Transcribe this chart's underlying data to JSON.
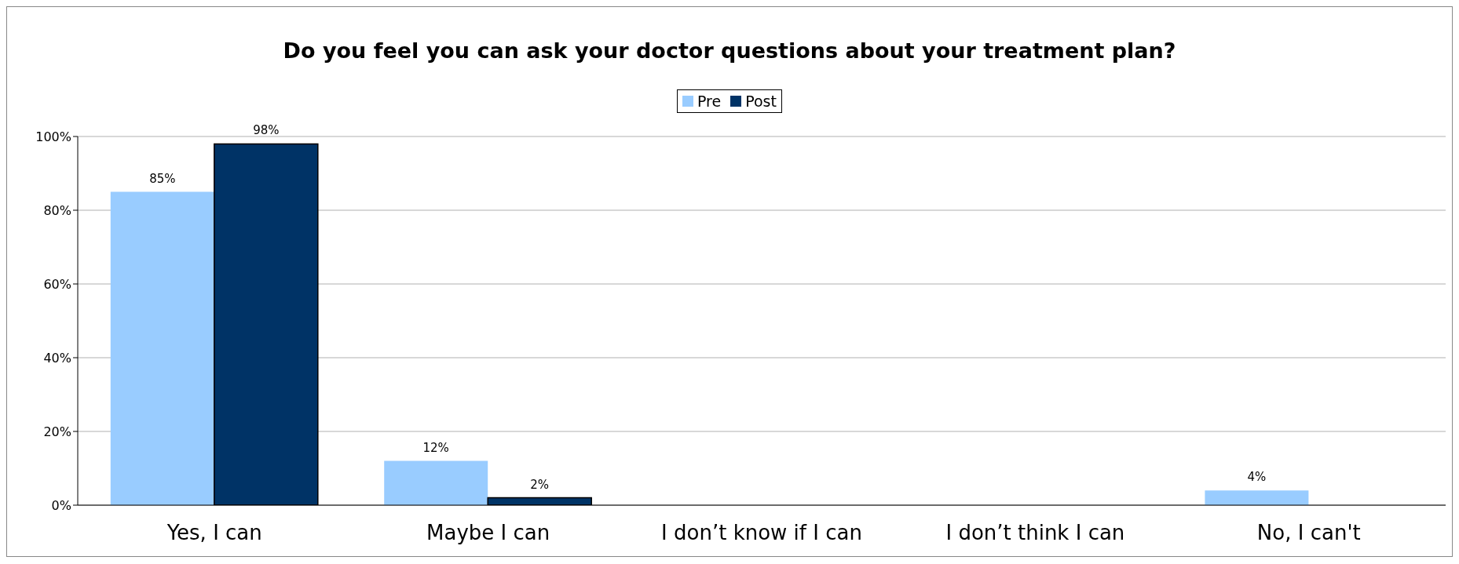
{
  "chart_data": {
    "type": "bar",
    "title": "Do you feel you can ask your doctor questions about your treatment plan?",
    "categories": [
      "Yes, I can",
      "Maybe I can",
      "I don’t know if I can",
      "I don’t think I can",
      "No, I can't"
    ],
    "series": [
      {
        "name": "Pre",
        "color": "#99ccff",
        "values": [
          85,
          12,
          null,
          null,
          4
        ],
        "value_labels": [
          "85%",
          "12%",
          null,
          null,
          "4%"
        ]
      },
      {
        "name": "Post",
        "color": "#003366",
        "values": [
          98,
          2,
          null,
          null,
          null
        ],
        "value_labels": [
          "98%",
          "2%",
          null,
          null,
          null
        ]
      }
    ],
    "ylim": [
      0,
      100
    ],
    "yticks": [
      {
        "value": 0,
        "label": "0%"
      },
      {
        "value": 20,
        "label": "20%"
      },
      {
        "value": 40,
        "label": "40%"
      },
      {
        "value": 60,
        "label": "60%"
      },
      {
        "value": 80,
        "label": "80%"
      },
      {
        "value": 100,
        "label": "100%"
      }
    ],
    "grid": "y",
    "legend": "top"
  }
}
